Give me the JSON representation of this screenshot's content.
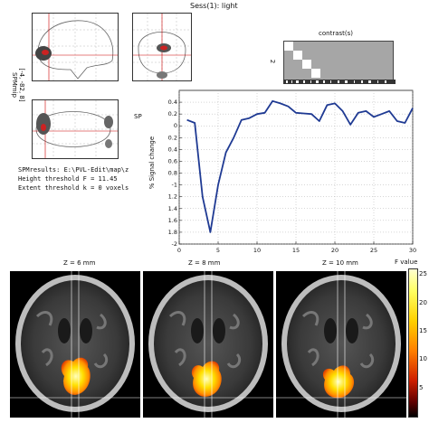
{
  "header": {
    "session_title": "Sess(1): light"
  },
  "mip": {
    "label": "SPMmip",
    "coords": "[-4, -82, 8]"
  },
  "contrast": {
    "title": "contrast(s)",
    "row_label": "2"
  },
  "results": {
    "line1": "SPMresults: E:\\PVL-Edit\\map\\z",
    "line2": "Height threshold F = 11.45",
    "line3": "Extent threshold k = 0 voxels"
  },
  "chart_data": {
    "type": "line",
    "title": "SP",
    "xlabel": "",
    "ylabel": "% Signal change",
    "xlim": [
      0,
      30
    ],
    "ylim": [
      -2,
      0.6
    ],
    "xticks": [
      0,
      5,
      10,
      15,
      20,
      25,
      30
    ],
    "yticks": [
      -2,
      -1.8,
      -1.6,
      -1.4,
      -1.2,
      -1,
      -0.8,
      -0.6,
      -0.4,
      -0.2,
      0,
      0.2,
      0.4
    ],
    "grid": true,
    "series": [
      {
        "color": "#1f3a93",
        "x": [
          1,
          2,
          3,
          4,
          5,
          6,
          7,
          8,
          9,
          10,
          11,
          12,
          13,
          14,
          15,
          16,
          17,
          18,
          19,
          20,
          21,
          22,
          23,
          24,
          25,
          26,
          27,
          28,
          29,
          30
        ],
        "values": [
          0.1,
          0.05,
          -1.2,
          -1.8,
          -1.0,
          -0.45,
          -0.2,
          0.1,
          0.13,
          0.2,
          0.22,
          0.42,
          0.38,
          0.33,
          0.22,
          0.21,
          0.2,
          0.08,
          0.35,
          0.38,
          0.25,
          0.02,
          0.22,
          0.25,
          0.15,
          0.2,
          0.25,
          0.08,
          0.05,
          0.3
        ]
      }
    ]
  },
  "slices": [
    {
      "label": "Z = 6 mm"
    },
    {
      "label": "Z = 8 mm"
    },
    {
      "label": "Z = 10 mm"
    }
  ],
  "colorbar": {
    "title": "F value",
    "ticks": [
      "25",
      "20",
      "15",
      "10",
      "5"
    ],
    "tick_values": [
      25,
      20,
      15,
      10,
      5
    ],
    "max": 26
  }
}
